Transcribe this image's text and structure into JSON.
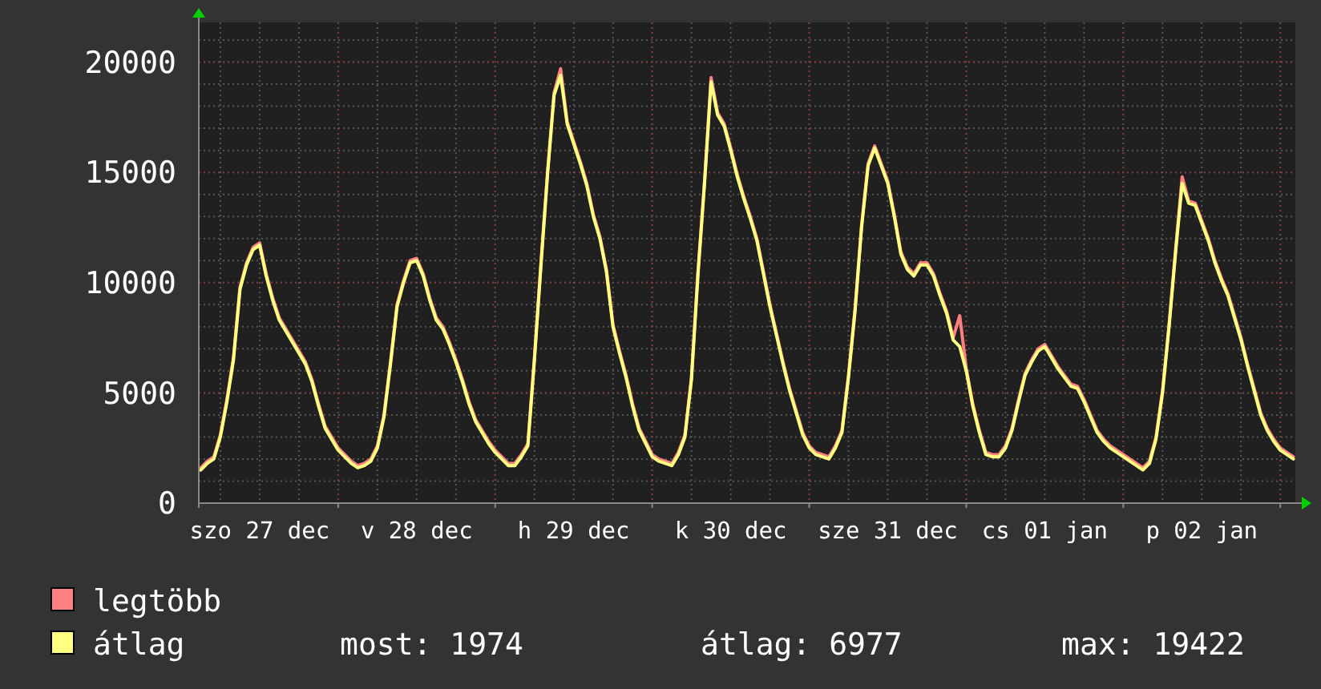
{
  "chart_data": {
    "type": "line",
    "categories": [
      null,
      null,
      null,
      null,
      null,
      null,
      null,
      null,
      null,
      "szo 27 dec",
      null,
      null,
      null,
      null,
      null,
      null,
      null,
      null,
      null,
      null,
      null,
      null,
      null,
      null,
      null,
      null,
      null,
      null,
      null,
      null,
      null,
      null,
      null,
      "v 28 dec",
      null,
      null,
      null,
      null,
      null,
      null,
      null,
      null,
      null,
      null,
      null,
      null,
      null,
      null,
      null,
      null,
      null,
      null,
      null,
      null,
      null,
      null,
      null,
      "h 29 dec",
      null,
      null,
      null,
      null,
      null,
      null,
      null,
      null,
      null,
      null,
      null,
      null,
      null,
      null,
      null,
      null,
      null,
      null,
      null,
      null,
      null,
      null,
      null,
      "k 30 dec",
      null,
      null,
      null,
      null,
      null,
      null,
      null,
      null,
      null,
      null,
      null,
      null,
      null,
      null,
      null,
      null,
      null,
      null,
      null,
      null,
      null,
      null,
      null,
      "sze 31 dec",
      null,
      null,
      null,
      null,
      null,
      null,
      null,
      null,
      null,
      null,
      null,
      null,
      null,
      null,
      null,
      null,
      null,
      null,
      null,
      null,
      null,
      null,
      null,
      "cs 01 jan",
      null,
      null,
      null,
      null,
      null,
      null,
      null,
      null,
      null,
      null,
      null,
      null,
      null,
      null,
      null,
      null,
      null,
      null,
      null,
      null,
      null,
      null,
      null,
      "p 02 jan",
      null,
      null,
      null,
      null,
      null,
      null,
      null,
      null,
      null,
      null,
      null,
      null,
      null,
      null
    ],
    "series": [
      {
        "name": "legtöbb",
        "color": "#ff8080",
        "values": [
          1600,
          1900,
          2100,
          3100,
          4700,
          6600,
          9800,
          10900,
          11600,
          11800,
          10400,
          9300,
          8400,
          7900,
          7400,
          6900,
          6400,
          5600,
          4500,
          3500,
          3000,
          2500,
          2200,
          1900,
          1700,
          1800,
          2000,
          2600,
          4000,
          6400,
          9000,
          10100,
          11000,
          11100,
          10400,
          9300,
          8400,
          8000,
          7300,
          6500,
          5600,
          4600,
          3800,
          3300,
          2800,
          2400,
          2100,
          1800,
          1800,
          2200,
          2700,
          6600,
          10900,
          15000,
          18600,
          19700,
          17300,
          16400,
          15500,
          14500,
          13100,
          12100,
          10600,
          8100,
          6900,
          5800,
          4500,
          3400,
          2800,
          2200,
          2000,
          1900,
          1800,
          2300,
          3100,
          5700,
          10500,
          14600,
          19300,
          17700,
          17200,
          16100,
          14900,
          13900,
          13000,
          12000,
          10500,
          9000,
          7700,
          6400,
          5200,
          4200,
          3200,
          2600,
          2300,
          2200,
          2100,
          2600,
          3300,
          5800,
          8800,
          12600,
          15400,
          16200,
          15400,
          14600,
          13100,
          11400,
          10700,
          10400,
          10900,
          10900,
          10400,
          9500,
          8700,
          7500,
          8500,
          6100,
          4500,
          3300,
          2300,
          2200,
          2200,
          2600,
          3400,
          4700,
          5900,
          6500,
          7000,
          7200,
          6700,
          6200,
          5800,
          5400,
          5300,
          4700,
          4000,
          3300,
          2900,
          2600,
          2400,
          2200,
          2000,
          1800,
          1600,
          1900,
          3000,
          5100,
          8100,
          11500,
          14800,
          13700,
          13600,
          12800,
          12000,
          11000,
          10200,
          9500,
          8500,
          7500,
          6300,
          5200,
          4100,
          3400,
          2900,
          2500,
          2300,
          2100
        ]
      },
      {
        "name": "átlag",
        "color": "#ffff80",
        "values": [
          1500,
          1800,
          2000,
          3000,
          4600,
          6500,
          9700,
          10800,
          11500,
          11700,
          10300,
          9200,
          8300,
          7800,
          7300,
          6800,
          6300,
          5500,
          4400,
          3400,
          2900,
          2400,
          2100,
          1800,
          1600,
          1700,
          1900,
          2500,
          3900,
          6300,
          8900,
          10000,
          10900,
          11000,
          10300,
          9200,
          8300,
          7900,
          7200,
          6400,
          5500,
          4500,
          3700,
          3200,
          2700,
          2300,
          2000,
          1700,
          1700,
          2100,
          2600,
          6500,
          10800,
          14900,
          18500,
          19400,
          17200,
          16300,
          15400,
          14400,
          13000,
          12000,
          10500,
          8000,
          6800,
          5700,
          4400,
          3300,
          2700,
          2100,
          1900,
          1800,
          1700,
          2200,
          3000,
          5600,
          10400,
          14500,
          19100,
          17600,
          17100,
          16000,
          14800,
          13800,
          12900,
          11900,
          10400,
          8900,
          7600,
          6300,
          5100,
          4100,
          3100,
          2500,
          2200,
          2100,
          2000,
          2500,
          3200,
          5700,
          8700,
          12500,
          15300,
          16100,
          15300,
          14500,
          13000,
          11300,
          10600,
          10300,
          10800,
          10800,
          10300,
          9400,
          8600,
          7400,
          7100,
          6000,
          4400,
          3200,
          2200,
          2100,
          2100,
          2500,
          3300,
          4600,
          5800,
          6400,
          6900,
          7100,
          6600,
          6100,
          5700,
          5300,
          5200,
          4600,
          3900,
          3200,
          2800,
          2500,
          2300,
          2100,
          1900,
          1700,
          1500,
          1800,
          2900,
          5000,
          8000,
          11400,
          14500,
          13600,
          13500,
          12700,
          11900,
          10900,
          10100,
          9400,
          8400,
          7400,
          6200,
          5100,
          4000,
          3300,
          2800,
          2400,
          2200,
          2000
        ]
      }
    ],
    "ylim": [
      0,
      21800
    ],
    "yticks": [
      0,
      5000,
      10000,
      15000,
      20000
    ],
    "grid": true,
    "legend": "bottom",
    "annotations": [
      "most: 1974",
      "átlag: 6977",
      "max: 19422"
    ]
  }
}
